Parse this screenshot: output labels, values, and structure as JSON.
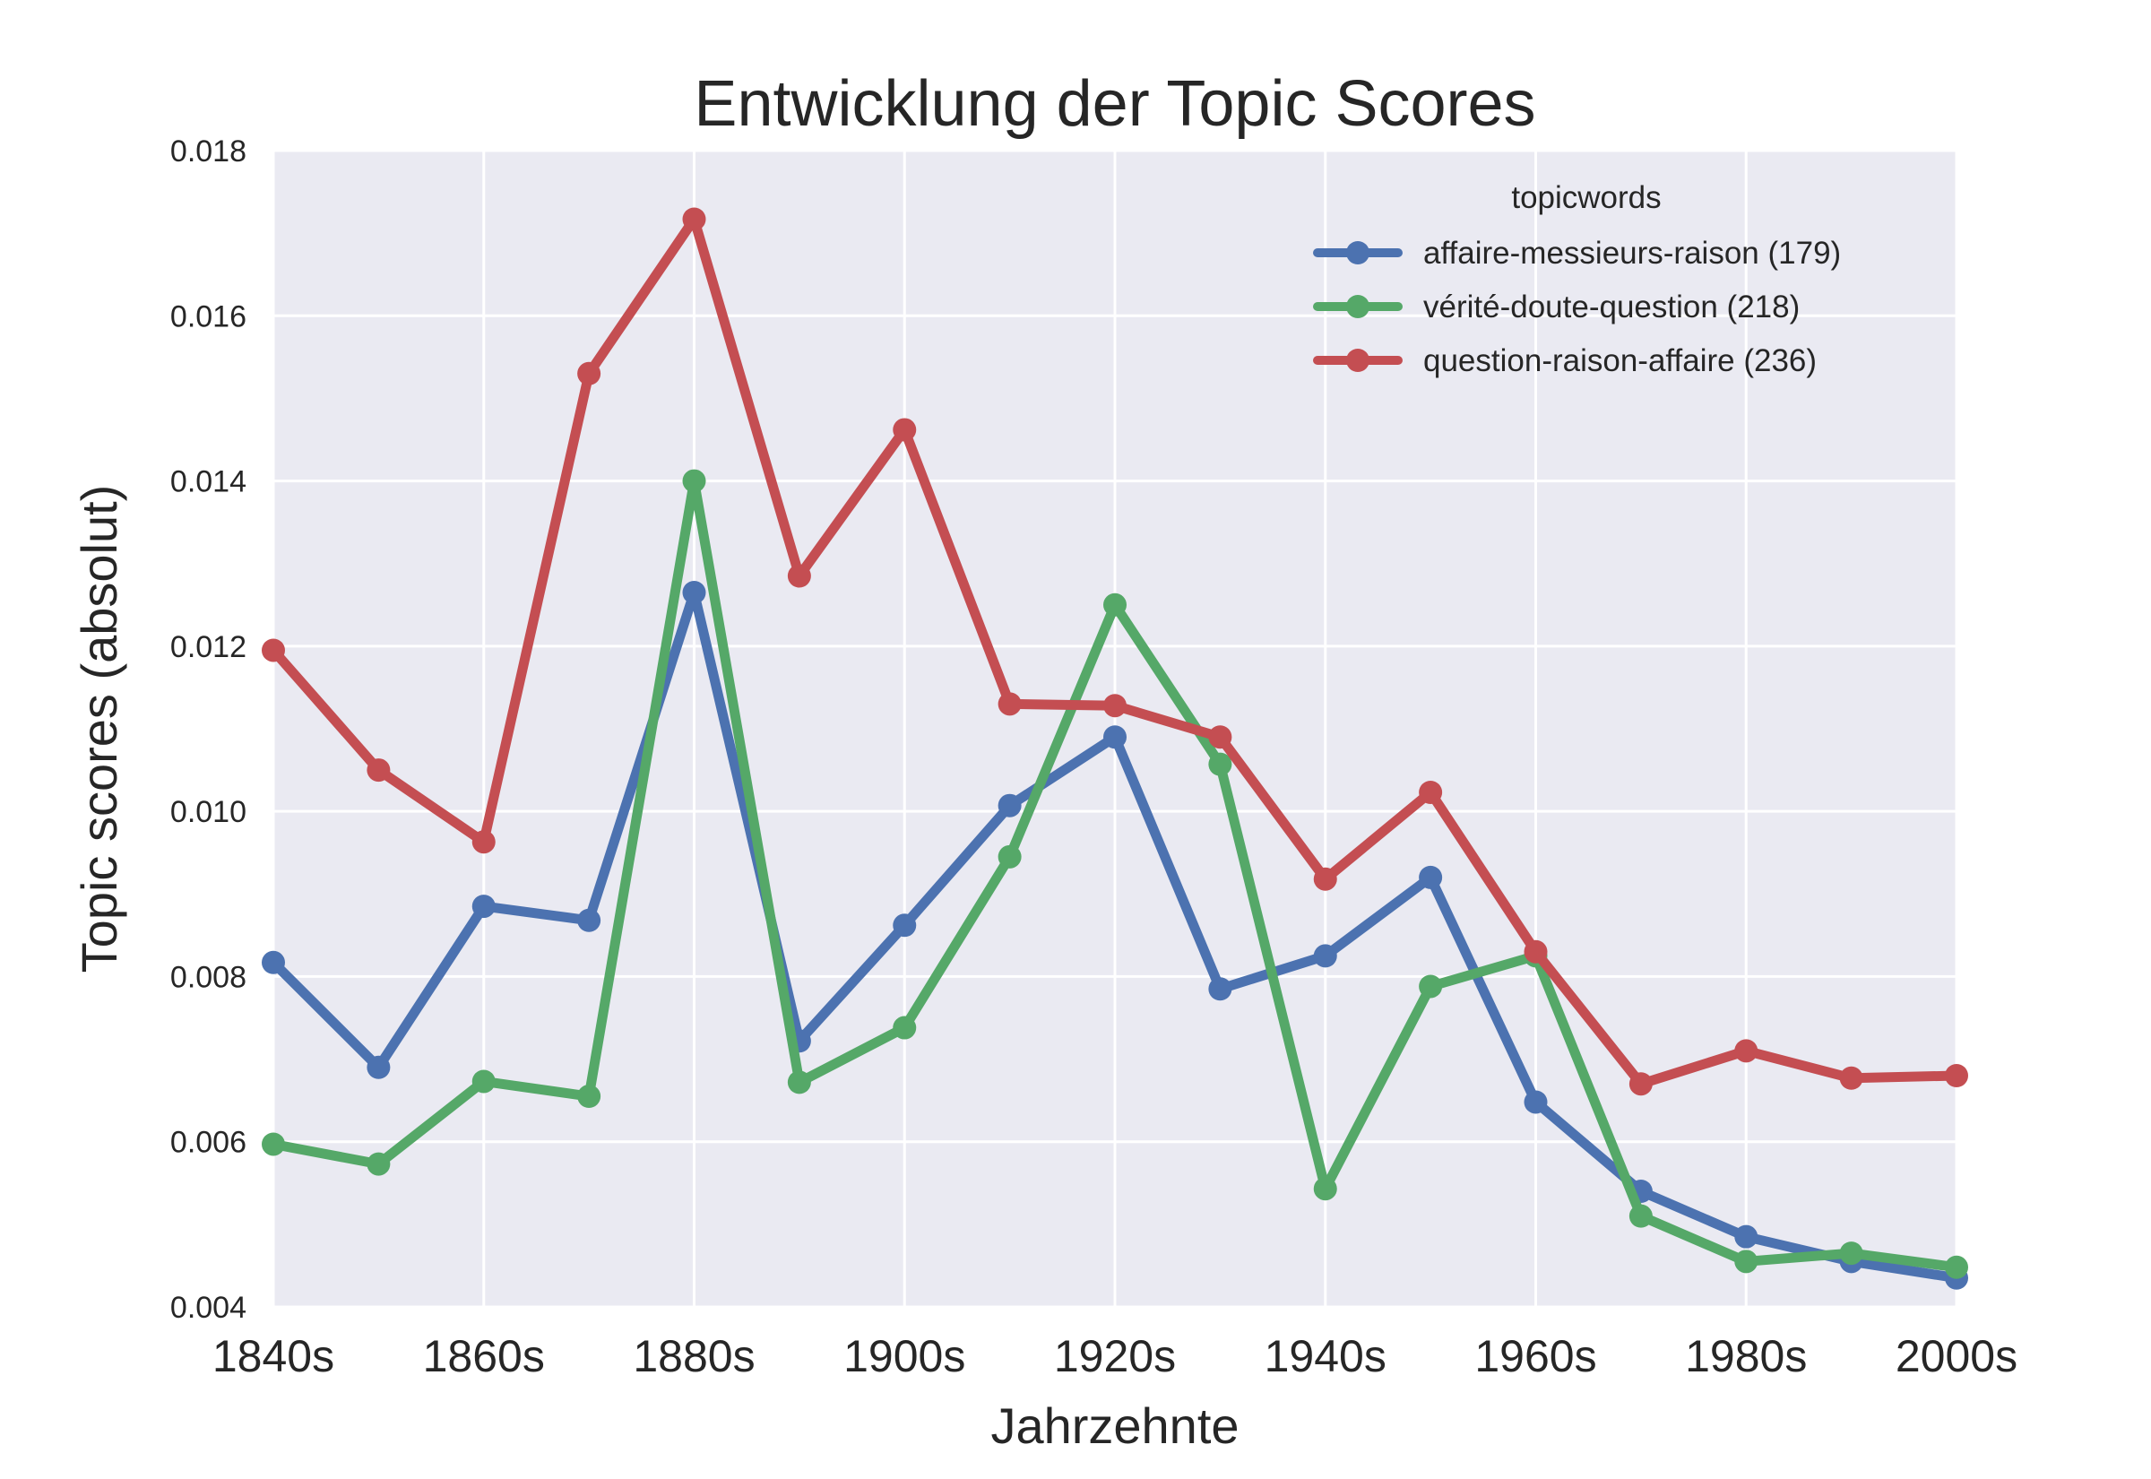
{
  "chart_data": {
    "type": "line",
    "title": "Entwicklung der Topic Scores",
    "xlabel": "Jahrzehnte",
    "ylabel": "Topic scores (absolut)",
    "x": [
      1840,
      1850,
      1860,
      1870,
      1880,
      1890,
      1900,
      1910,
      1920,
      1930,
      1940,
      1950,
      1960,
      1970,
      1980,
      1990,
      2000
    ],
    "xlim": [
      1840,
      2000
    ],
    "xticks": [
      1840,
      1860,
      1880,
      1900,
      1920,
      1940,
      1960,
      1980,
      2000
    ],
    "xtick_labels": [
      "1840s",
      "1860s",
      "1880s",
      "1900s",
      "1920s",
      "1940s",
      "1960s",
      "1980s",
      "2000s"
    ],
    "ylim": [
      0.004,
      0.018
    ],
    "yticks": [
      0.004,
      0.006,
      0.008,
      0.01,
      0.012,
      0.014,
      0.016,
      0.018
    ],
    "ytick_labels": [
      "0.004",
      "0.006",
      "0.008",
      "0.010",
      "0.012",
      "0.014",
      "0.016",
      "0.018"
    ],
    "grid": true,
    "background": "#eaeaf2",
    "legend": {
      "title": "topicwords",
      "placement": "top-right"
    },
    "series": [
      {
        "name": "affaire-messieurs-raison (179)",
        "color": "#4c72b0",
        "values": [
          0.00817,
          0.0069,
          0.00885,
          0.00868,
          0.01265,
          0.00722,
          0.00862,
          0.01007,
          0.0109,
          0.00785,
          0.00825,
          0.0092,
          0.00648,
          0.0054,
          0.00485,
          0.00455,
          0.00435
        ]
      },
      {
        "name": "vérité-doute-question (218)",
        "color": "#55a868",
        "values": [
          0.00597,
          0.00573,
          0.00673,
          0.00655,
          0.014,
          0.00672,
          0.00738,
          0.00945,
          0.0125,
          0.01057,
          0.00543,
          0.00788,
          0.00825,
          0.0051,
          0.00455,
          0.00465,
          0.00448
        ]
      },
      {
        "name": "question-raison-affaire (236)",
        "color": "#c44e52",
        "values": [
          0.01195,
          0.0105,
          0.00963,
          0.0153,
          0.01717,
          0.01285,
          0.01462,
          0.0113,
          0.01128,
          0.0109,
          0.00918,
          0.01023,
          0.0083,
          0.0067,
          0.0071,
          0.00677,
          0.0068
        ]
      }
    ]
  }
}
